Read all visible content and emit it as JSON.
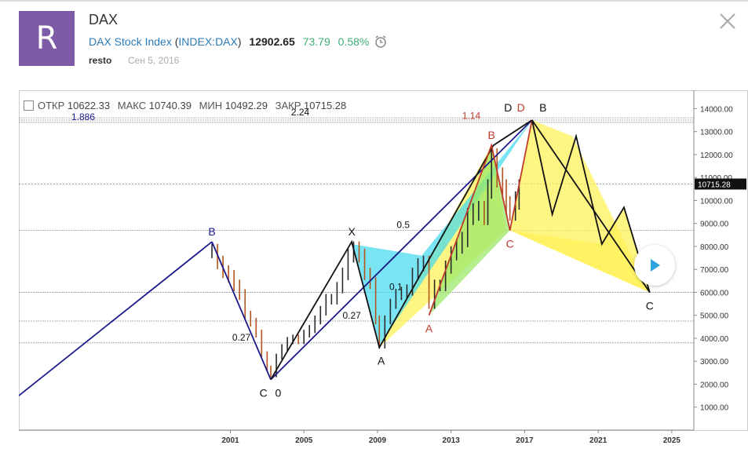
{
  "header": {
    "avatar_letter": "R",
    "title": "DAX",
    "symbol_link": "DAX Stock Index",
    "symbol_open": " (",
    "symbol_code": "INDEX:DAX",
    "symbol_close": ")",
    "price": "12902.65",
    "change": "73.79",
    "change_pct": "0.58%",
    "author": "resto",
    "date": "Сен 5, 2016"
  },
  "ohlc": {
    "open_label": "ОТКР",
    "open": "10622.33",
    "high_label": "МАКС",
    "high": "10740.39",
    "low_label": "МИН",
    "low": "10492.29",
    "close_label": "ЗАКР",
    "close": "10715.28"
  },
  "chart_data": {
    "type": "line",
    "title": "",
    "xlabel": "",
    "ylabel": "",
    "x_ticks": [
      "2001",
      "2005",
      "2009",
      "2013",
      "2017",
      "2021",
      "2025"
    ],
    "y_ticks": [
      "1000.00",
      "2000.00",
      "3000.00",
      "4000.00",
      "5000.00",
      "6000.00",
      "7000.00",
      "8000.00",
      "9000.00",
      "10000.00",
      "11000.00",
      "12000.00",
      "13000.00",
      "14000.00"
    ],
    "xlim": [
      1989.5,
      2026.2
    ],
    "ylim": [
      0,
      14800
    ],
    "last_price_label": "10715.28",
    "last_price": 10715.28,
    "horizontal_levels": [
      13600,
      13500,
      13400,
      8700,
      6000,
      4750,
      3800
    ],
    "price_series": [
      [
        2000.0,
        7800
      ],
      [
        2000.3,
        7300
      ],
      [
        2000.6,
        6900
      ],
      [
        2000.9,
        6700
      ],
      [
        2001.2,
        6300
      ],
      [
        2001.5,
        5900
      ],
      [
        2001.8,
        5000
      ],
      [
        2002.1,
        4700
      ],
      [
        2002.4,
        4200
      ],
      [
        2002.7,
        3300
      ],
      [
        2003.0,
        2700
      ],
      [
        2003.2,
        2400
      ],
      [
        2003.5,
        3200
      ],
      [
        2003.8,
        3600
      ],
      [
        2004.1,
        3900
      ],
      [
        2004.4,
        4000
      ],
      [
        2004.7,
        3900
      ],
      [
        2005.0,
        4200
      ],
      [
        2005.3,
        4400
      ],
      [
        2005.6,
        4800
      ],
      [
        2005.9,
        5200
      ],
      [
        2006.2,
        5700
      ],
      [
        2006.5,
        5700
      ],
      [
        2006.8,
        6200
      ],
      [
        2007.1,
        6800
      ],
      [
        2007.4,
        7600
      ],
      [
        2007.7,
        7900
      ],
      [
        2008.0,
        7600
      ],
      [
        2008.3,
        6800
      ],
      [
        2008.6,
        6400
      ],
      [
        2008.9,
        4800
      ],
      [
        2009.1,
        3700
      ],
      [
        2009.4,
        4800
      ],
      [
        2009.7,
        5500
      ],
      [
        2010.0,
        5900
      ],
      [
        2010.3,
        6000
      ],
      [
        2010.6,
        6100
      ],
      [
        2010.9,
        6800
      ],
      [
        2011.2,
        7200
      ],
      [
        2011.5,
        7300
      ],
      [
        2011.8,
        5500
      ],
      [
        2012.1,
        6300
      ],
      [
        2012.4,
        6300
      ],
      [
        2012.7,
        7100
      ],
      [
        2013.0,
        7700
      ],
      [
        2013.3,
        8000
      ],
      [
        2013.6,
        8300
      ],
      [
        2013.9,
        9300
      ],
      [
        2014.2,
        9500
      ],
      [
        2014.5,
        9600
      ],
      [
        2014.8,
        9300
      ],
      [
        2015.0,
        10500
      ],
      [
        2015.2,
        11800
      ],
      [
        2015.5,
        11000
      ],
      [
        2015.8,
        10500
      ],
      [
        2016.0,
        9800
      ],
      [
        2016.2,
        9500
      ],
      [
        2016.5,
        10000
      ],
      [
        2016.7,
        10500
      ]
    ],
    "blue_trend_lines": [
      [
        [
          1989.5,
          1500
        ],
        [
          2000.0,
          8200
        ]
      ],
      [
        [
          2000.0,
          8200
        ],
        [
          2003.2,
          2200
        ]
      ],
      [
        [
          2003.2,
          2200
        ],
        [
          2017.4,
          13500
        ]
      ]
    ],
    "black_pattern_line": [
      [
        2003.2,
        2200
      ],
      [
        2007.6,
        8200
      ],
      [
        2009.1,
        3600
      ],
      [
        2015.3,
        12400
      ],
      [
        2017.4,
        13500
      ]
    ],
    "red_pattern_line": [
      [
        2011.8,
        5000
      ],
      [
        2015.2,
        12400
      ],
      [
        2016.2,
        8700
      ],
      [
        2017.4,
        13500
      ]
    ],
    "black_projection_line": [
      [
        2017.4,
        13500
      ],
      [
        2018.5,
        9400
      ],
      [
        2019.8,
        12800
      ],
      [
        2021.2,
        8100
      ],
      [
        2022.4,
        9700
      ],
      [
        2023.8,
        6000
      ]
    ],
    "black_projection_line_2": [
      [
        2017.4,
        13500
      ],
      [
        2023.8,
        6000
      ]
    ],
    "cyan_triangles": [
      [
        [
          2007.6,
          8100
        ],
        [
          2009.1,
          3700
        ],
        [
          2011.4,
          7600
        ]
      ],
      [
        [
          2009.1,
          3700
        ],
        [
          2011.4,
          7600
        ],
        [
          2017.4,
          13500
        ]
      ]
    ],
    "green_triangle": [
      [
        2011.8,
        5000
      ],
      [
        2015.2,
        12400
      ],
      [
        2016.2,
        8700
      ]
    ],
    "yellow_triangles": [
      [
        [
          2009.1,
          3600
        ],
        [
          2015.2,
          12400
        ],
        [
          2016.0,
          8700
        ]
      ],
      [
        [
          2016.2,
          8700
        ],
        [
          2017.4,
          13500
        ],
        [
          2019.6,
          12800
        ],
        [
          2023.8,
          6000
        ]
      ],
      [
        [
          2016.2,
          8700
        ],
        [
          2021.2,
          8100
        ],
        [
          2022.4,
          9700
        ],
        [
          2023.8,
          6000
        ]
      ]
    ],
    "point_labels": [
      {
        "text": "B",
        "x": 2000.0,
        "y": 8200,
        "color": "#1a1a8c"
      },
      {
        "text": "C",
        "x": 2002.8,
        "y": 2200,
        "color": "#111111"
      },
      {
        "text": "0",
        "x": 2003.6,
        "y": 2200,
        "color": "#111111"
      },
      {
        "text": "X",
        "x": 2007.6,
        "y": 8200,
        "color": "#111111"
      },
      {
        "text": "A",
        "x": 2009.2,
        "y": 3600,
        "color": "#111111"
      },
      {
        "text": "A",
        "x": 2011.8,
        "y": 5000,
        "color": "#c0392b"
      },
      {
        "text": "B",
        "x": 2015.2,
        "y": 12400,
        "color": "#c0392b"
      },
      {
        "text": "C",
        "x": 2016.2,
        "y": 8700,
        "color": "#c0392b"
      },
      {
        "text": "D",
        "x": 2016.1,
        "y": 13600,
        "color": "#111111"
      },
      {
        "text": "D",
        "x": 2016.8,
        "y": 13600,
        "color": "#c0392b"
      },
      {
        "text": "B",
        "x": 2018.0,
        "y": 13600,
        "color": "#111111"
      },
      {
        "text": "C",
        "x": 2023.8,
        "y": 6000,
        "color": "#111111"
      }
    ],
    "ratio_labels": [
      {
        "text": "1.886",
        "x": 1993.0,
        "y": 13400,
        "color": "#1a1a8c"
      },
      {
        "text": "2.24",
        "x": 2004.8,
        "y": 13600,
        "color": "#111111"
      },
      {
        "text": "1.14",
        "x": 2014.1,
        "y": 13450,
        "color": "#c0392b"
      },
      {
        "text": "0.5",
        "x": 2010.4,
        "y": 8700,
        "color": "#111111"
      },
      {
        "text": "0.1",
        "x": 2010.0,
        "y": 6000,
        "color": "#111111"
      },
      {
        "text": "0.27",
        "x": 2001.6,
        "y": 3800,
        "color": "#111111"
      },
      {
        "text": "0.27",
        "x": 2007.6,
        "y": 4750,
        "color": "#111111"
      }
    ]
  },
  "colors": {
    "accent": "#2b7bb9",
    "positive": "#3cae75",
    "avatar": "#7d5ba6",
    "blue_line": "#1a1a8c",
    "red_line": "#c0392b",
    "cyan_fill": "#40d8f0",
    "green_fill": "#9be86a",
    "yellow_fill": "#fff25a"
  },
  "icons": {
    "alarm": "alarm-clock-icon",
    "close": "close-icon",
    "play": "play-icon",
    "expand": "plus-icon"
  }
}
